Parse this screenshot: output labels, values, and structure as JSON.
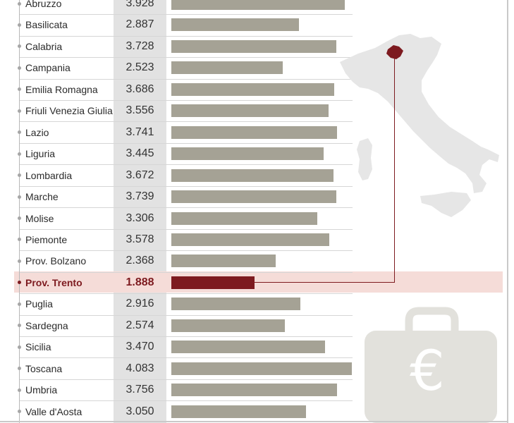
{
  "chart_data": {
    "type": "bar",
    "orientation": "horizontal",
    "highlighted_category": "Prov. Trento",
    "categories": [
      "Abruzzo",
      "Basilicata",
      "Calabria",
      "Campania",
      "Emilia Romagna",
      "Friuli Venezia Giulia",
      "Lazio",
      "Liguria",
      "Lombardia",
      "Marche",
      "Molise",
      "Piemonte",
      "Prov. Bolzano",
      "Prov. Trento",
      "Puglia",
      "Sardegna",
      "Sicilia",
      "Toscana",
      "Umbria",
      "Valle d'Aosta"
    ],
    "value_labels": [
      "3.928",
      "2.887",
      "3.728",
      "2.523",
      "3.686",
      "3.556",
      "3.741",
      "3.445",
      "3.672",
      "3.739",
      "3.306",
      "3.578",
      "2.368",
      "1.888",
      "2.916",
      "2.574",
      "3.470",
      "4.083",
      "3.756",
      "3.050"
    ],
    "values": [
      3928,
      2887,
      3728,
      2523,
      3686,
      3556,
      3741,
      3445,
      3672,
      3739,
      3306,
      3578,
      2368,
      1888,
      2916,
      2574,
      3470,
      4083,
      3756,
      3050
    ],
    "xlim": [
      0,
      4083
    ]
  },
  "colors": {
    "bar": "#a5a295",
    "highlight": "#7d1a1f",
    "highlight_row": "#f5dcd8",
    "value_column": "#e2e2e2",
    "map_fill": "#e6e6e6",
    "briefcase_fill": "#e2e1dc"
  },
  "icons": [
    "italy-map",
    "briefcase-euro-icon"
  ]
}
